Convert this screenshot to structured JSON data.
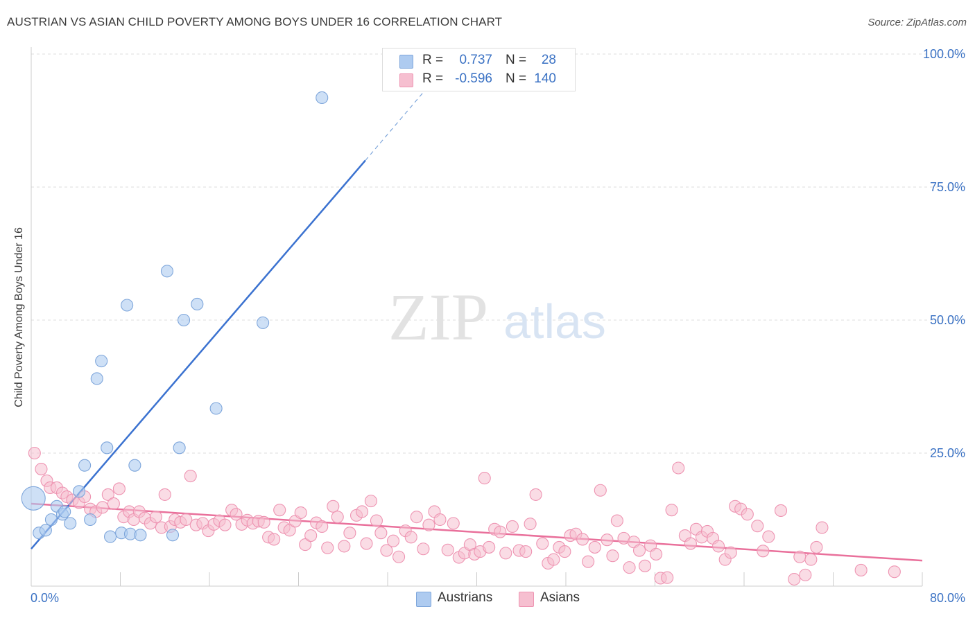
{
  "title": "AUSTRIAN VS ASIAN CHILD POVERTY AMONG BOYS UNDER 16 CORRELATION CHART",
  "source": "Source: ZipAtlas.com",
  "watermark": {
    "zip": "ZIP",
    "atlas": "atlas"
  },
  "legend_top": {
    "rows": [
      {
        "r_label": "R =",
        "r_value": "0.737",
        "n_label": "N =",
        "n_value": "28"
      },
      {
        "r_label": "R =",
        "r_value": "-0.596",
        "n_label": "N =",
        "n_value": "140"
      }
    ]
  },
  "legend_bottom": {
    "items": [
      "Austrians",
      "Asians"
    ]
  },
  "colors": {
    "austrian_fill": "#aecbf0",
    "austrian_stroke": "#7ea6db",
    "austrian_line": "#3b72d0",
    "asian_fill": "#f6bfd0",
    "asian_stroke": "#ee94b2",
    "asian_line": "#e9709b",
    "tick_label": "#3b72c4",
    "grid": "#dddddd"
  },
  "chart_data": {
    "type": "scatter",
    "title": "AUSTRIAN VS ASIAN CHILD POVERTY AMONG BOYS UNDER 16 CORRELATION CHART",
    "xlabel": "",
    "ylabel": "Child Poverty Among Boys Under 16",
    "xlim": [
      0,
      80
    ],
    "ylim": [
      0,
      100
    ],
    "x_tick_labels": [
      "0.0%",
      "80.0%"
    ],
    "y_ticks": [
      25,
      50,
      75,
      100
    ],
    "y_tick_labels": [
      "25.0%",
      "50.0%",
      "75.0%",
      "100.0%"
    ],
    "grid": true,
    "legend_placement": "bottom",
    "series": [
      {
        "name": "Austrians",
        "r": 0.737,
        "n": 28,
        "trend": {
          "x1": 0,
          "y1": 7,
          "x2": 30,
          "y2": 80,
          "dashed_to_x": 36.5,
          "dashed_to_y": 96
        },
        "points": [
          [
            0.2,
            16.5
          ],
          [
            0.7,
            10.0
          ],
          [
            1.3,
            10.5
          ],
          [
            1.8,
            12.5
          ],
          [
            2.3,
            15.0
          ],
          [
            2.8,
            13.5
          ],
          [
            3.5,
            11.8
          ],
          [
            4.3,
            17.8
          ],
          [
            4.8,
            22.7
          ],
          [
            5.3,
            12.5
          ],
          [
            5.9,
            39.0
          ],
          [
            6.3,
            42.3
          ],
          [
            6.8,
            26.0
          ],
          [
            7.1,
            9.3
          ],
          [
            8.1,
            10.0
          ],
          [
            8.6,
            52.8
          ],
          [
            8.9,
            9.8
          ],
          [
            9.3,
            22.7
          ],
          [
            9.8,
            9.6
          ],
          [
            12.2,
            59.2
          ],
          [
            12.7,
            9.6
          ],
          [
            13.3,
            26.0
          ],
          [
            13.7,
            50.0
          ],
          [
            14.9,
            53.0
          ],
          [
            16.6,
            33.4
          ],
          [
            20.8,
            49.5
          ],
          [
            26.1,
            91.8
          ],
          [
            3.0,
            14.0
          ]
        ]
      },
      {
        "name": "Asians",
        "r": -0.596,
        "n": 140,
        "trend": {
          "x1": 0,
          "y1": 15.5,
          "x2": 80,
          "y2": 4.8
        },
        "points": [
          [
            0.3,
            25.0
          ],
          [
            0.9,
            22.0
          ],
          [
            1.4,
            19.8
          ],
          [
            1.7,
            18.5
          ],
          [
            2.3,
            18.5
          ],
          [
            2.8,
            17.5
          ],
          [
            3.2,
            16.8
          ],
          [
            3.7,
            16.2
          ],
          [
            4.3,
            15.7
          ],
          [
            4.8,
            16.8
          ],
          [
            5.3,
            14.5
          ],
          [
            5.8,
            14.0
          ],
          [
            6.4,
            14.8
          ],
          [
            6.9,
            17.2
          ],
          [
            7.4,
            15.5
          ],
          [
            7.9,
            18.3
          ],
          [
            8.3,
            13.0
          ],
          [
            8.8,
            14.0
          ],
          [
            9.2,
            12.5
          ],
          [
            9.7,
            14.0
          ],
          [
            10.2,
            12.8
          ],
          [
            10.7,
            11.8
          ],
          [
            11.2,
            13.0
          ],
          [
            11.7,
            11.0
          ],
          [
            12.0,
            17.2
          ],
          [
            12.5,
            11.2
          ],
          [
            12.9,
            12.5
          ],
          [
            13.4,
            12.0
          ],
          [
            13.9,
            12.5
          ],
          [
            14.3,
            20.7
          ],
          [
            14.8,
            11.5
          ],
          [
            15.4,
            11.8
          ],
          [
            15.9,
            10.4
          ],
          [
            16.4,
            11.6
          ],
          [
            16.9,
            12.3
          ],
          [
            17.4,
            11.5
          ],
          [
            18.0,
            14.3
          ],
          [
            18.4,
            13.5
          ],
          [
            18.9,
            11.6
          ],
          [
            19.4,
            12.4
          ],
          [
            19.9,
            11.8
          ],
          [
            20.4,
            12.2
          ],
          [
            20.9,
            12.0
          ],
          [
            21.3,
            9.2
          ],
          [
            21.8,
            8.8
          ],
          [
            22.3,
            14.3
          ],
          [
            22.7,
            11.0
          ],
          [
            23.2,
            10.5
          ],
          [
            23.7,
            12.2
          ],
          [
            24.2,
            13.8
          ],
          [
            24.6,
            7.8
          ],
          [
            25.1,
            9.5
          ],
          [
            25.6,
            11.9
          ],
          [
            26.1,
            11.2
          ],
          [
            26.6,
            7.2
          ],
          [
            27.1,
            15.0
          ],
          [
            27.5,
            13.0
          ],
          [
            28.1,
            7.5
          ],
          [
            28.6,
            10.0
          ],
          [
            29.2,
            13.3
          ],
          [
            29.7,
            14.0
          ],
          [
            30.1,
            8.0
          ],
          [
            30.5,
            16.0
          ],
          [
            31.0,
            12.3
          ],
          [
            31.4,
            10.0
          ],
          [
            31.9,
            6.7
          ],
          [
            32.5,
            8.5
          ],
          [
            33.0,
            5.5
          ],
          [
            33.6,
            10.4
          ],
          [
            34.1,
            9.2
          ],
          [
            34.6,
            13.0
          ],
          [
            35.2,
            7.0
          ],
          [
            35.7,
            11.5
          ],
          [
            36.2,
            14.0
          ],
          [
            36.7,
            12.5
          ],
          [
            37.4,
            6.8
          ],
          [
            37.9,
            11.8
          ],
          [
            38.4,
            5.4
          ],
          [
            38.9,
            6.2
          ],
          [
            39.4,
            7.8
          ],
          [
            39.8,
            6.0
          ],
          [
            40.3,
            6.5
          ],
          [
            40.7,
            20.3
          ],
          [
            41.1,
            7.3
          ],
          [
            41.6,
            10.7
          ],
          [
            42.1,
            10.2
          ],
          [
            42.6,
            6.2
          ],
          [
            43.2,
            11.2
          ],
          [
            43.8,
            6.7
          ],
          [
            44.4,
            6.5
          ],
          [
            44.8,
            11.7
          ],
          [
            45.3,
            17.2
          ],
          [
            45.9,
            8.0
          ],
          [
            46.4,
            4.3
          ],
          [
            46.9,
            5.0
          ],
          [
            47.4,
            7.3
          ],
          [
            47.9,
            6.5
          ],
          [
            48.4,
            9.5
          ],
          [
            48.9,
            9.8
          ],
          [
            49.5,
            8.8
          ],
          [
            50.0,
            4.6
          ],
          [
            50.6,
            7.3
          ],
          [
            51.1,
            18.0
          ],
          [
            51.7,
            8.7
          ],
          [
            52.2,
            5.7
          ],
          [
            52.6,
            12.3
          ],
          [
            53.2,
            9.0
          ],
          [
            53.7,
            3.5
          ],
          [
            54.1,
            8.3
          ],
          [
            54.6,
            6.7
          ],
          [
            55.1,
            3.8
          ],
          [
            55.6,
            7.6
          ],
          [
            56.1,
            6.0
          ],
          [
            56.5,
            1.5
          ],
          [
            57.1,
            1.6
          ],
          [
            57.5,
            14.3
          ],
          [
            58.1,
            22.2
          ],
          [
            58.7,
            9.5
          ],
          [
            59.2,
            8.0
          ],
          [
            59.7,
            10.7
          ],
          [
            60.2,
            9.2
          ],
          [
            60.7,
            10.3
          ],
          [
            61.2,
            9.0
          ],
          [
            61.7,
            7.5
          ],
          [
            62.3,
            5.0
          ],
          [
            62.8,
            6.3
          ],
          [
            63.2,
            15.0
          ],
          [
            63.7,
            14.5
          ],
          [
            64.3,
            13.5
          ],
          [
            65.2,
            11.3
          ],
          [
            65.7,
            6.6
          ],
          [
            66.2,
            9.3
          ],
          [
            67.3,
            14.2
          ],
          [
            68.5,
            1.3
          ],
          [
            69.0,
            5.5
          ],
          [
            69.5,
            2.1
          ],
          [
            70.0,
            5.0
          ],
          [
            70.5,
            7.3
          ],
          [
            71.0,
            11.0
          ],
          [
            74.5,
            3.0
          ],
          [
            77.5,
            2.7
          ]
        ]
      }
    ]
  }
}
